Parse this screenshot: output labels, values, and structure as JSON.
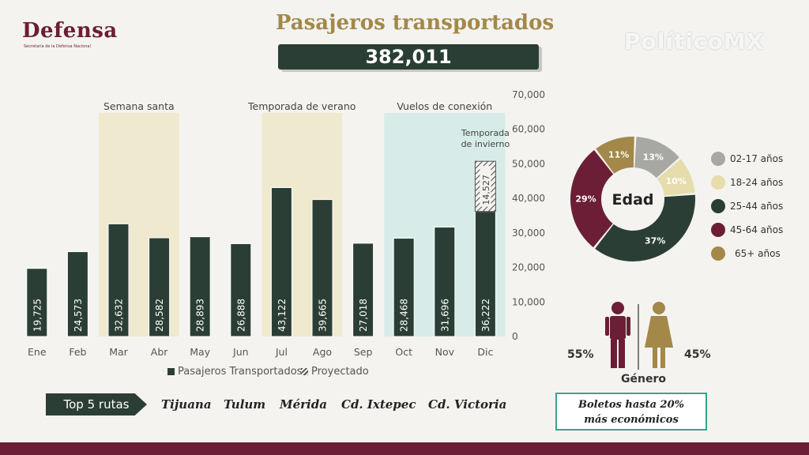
{
  "header": {
    "logo_title": "Defensa",
    "logo_subtitle": "Secretaría de la Defensa Nacional",
    "title": "Pasajeros transportados",
    "total": "382,011",
    "watermark": "PolíticoMX"
  },
  "colors": {
    "dark_green": "#2b3e35",
    "gold": "#a3884a",
    "maroon": "#6b1e35",
    "beige_band": "#efe9cf",
    "blue_band": "#d7ece8",
    "teal_border": "#3aa38d"
  },
  "chart_data": [
    {
      "type": "bar",
      "categories": [
        "Ene",
        "Feb",
        "Mar",
        "Abr",
        "May",
        "Jun",
        "Jul",
        "Ago",
        "Sep",
        "Oct",
        "Nov",
        "Dic"
      ],
      "series": [
        {
          "name": "Pasajeros Transportados",
          "values": [
            19725,
            24573,
            32632,
            28582,
            28893,
            26888,
            43122,
            39665,
            27018,
            28468,
            31696,
            36222
          ]
        },
        {
          "name": "Proyectado",
          "values": [
            null,
            null,
            null,
            null,
            null,
            null,
            null,
            null,
            null,
            null,
            null,
            14527
          ]
        }
      ],
      "value_labels": [
        "19,725",
        "24,573",
        "32,632",
        "28,582",
        "28,893",
        "26,888",
        "43,122",
        "39,665",
        "27,018",
        "28,468",
        "31,696",
        "36,222"
      ],
      "projected_label": "14,527",
      "yticks": [
        "0",
        "10,000",
        "20,000",
        "30,000",
        "40,000",
        "50,000",
        "60,000",
        "70,000"
      ],
      "ylim": [
        0,
        70000
      ],
      "y_axis_side": "right",
      "bands": [
        {
          "label": "Semana santa",
          "from": "Mar",
          "to": "Abr",
          "color": "beige"
        },
        {
          "label": "Temporada de verano",
          "from": "Jul",
          "to": "Ago",
          "color": "beige"
        },
        {
          "label": "Vuelos de conexión",
          "from": "Oct",
          "to": "Dic",
          "color": "blue"
        }
      ],
      "annotation": "Temporada de invierno",
      "legend": [
        "Pasajeros Transportados",
        "Proyectado"
      ],
      "legend_position": "bottom"
    },
    {
      "type": "pie",
      "title": "Edad",
      "categories": [
        "02-17 años",
        "18-24 años",
        "25-44 años",
        "45-64 años",
        "65+ años"
      ],
      "values": [
        13,
        10,
        37,
        29,
        11
      ],
      "labels": [
        "13%",
        "10%",
        "37%",
        "29%",
        "11%"
      ],
      "colors": [
        "#a7a7a4",
        "#e6dcac",
        "#2b3e35",
        "#6b1e35",
        "#a3884a"
      ]
    },
    {
      "type": "pie",
      "title": "Género",
      "categories": [
        "Hombres",
        "Mujeres"
      ],
      "values": [
        55,
        45
      ],
      "labels": [
        "55%",
        "45%"
      ]
    }
  ],
  "routes": {
    "tag": "Top 5 rutas",
    "items": [
      "Tijuana",
      "Tulum",
      "Mérida",
      "Cd. Ixtepec",
      "Cd. Victoria"
    ]
  },
  "tickets": {
    "line1": "Boletos hasta 20%",
    "line2": "más económicos"
  }
}
